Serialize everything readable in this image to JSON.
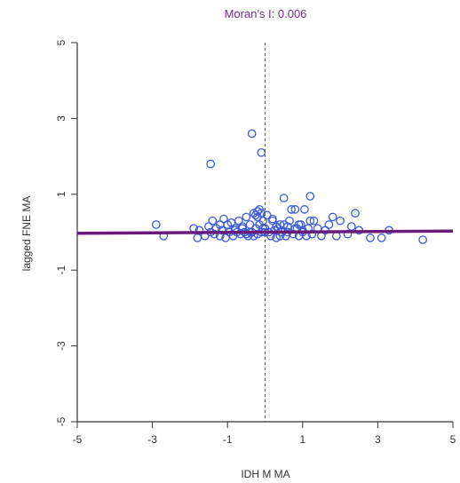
{
  "chart_data": {
    "type": "scatter",
    "title": "Moran's I: 0.006",
    "xlabel": "IDH M MA",
    "ylabel": "lagged FNE MA",
    "xlim": [
      -5,
      5
    ],
    "ylim": [
      -5,
      5
    ],
    "xticks": [
      -5,
      -3,
      -1,
      1,
      3,
      5
    ],
    "yticks": [
      -5,
      -3,
      -1,
      1,
      3,
      5
    ],
    "grid": false,
    "colors": {
      "points": "#3b5bdb",
      "regression": "#6a1a7a",
      "title": "#7a2a8a",
      "vline": "#555555"
    },
    "vline_x": 0,
    "regression": {
      "intercept": 0.0,
      "slope": 0.006
    },
    "series": [
      {
        "x": [
          -2.9,
          -2.7,
          -1.9,
          -1.8,
          -1.75,
          -1.6,
          -1.5,
          -1.45,
          -1.4,
          -1.35,
          -1.3,
          -1.2,
          -1.15,
          -1.1,
          -1.05,
          -1.0,
          -0.95,
          -0.9,
          -0.85,
          -0.8,
          -0.75,
          -0.7,
          -0.65,
          -0.6,
          -0.55,
          -0.5,
          -0.45,
          -0.4,
          -0.35,
          -0.3,
          -0.25,
          -0.2,
          -0.15,
          -0.1,
          -0.05,
          0.0,
          -0.3,
          -0.25,
          -0.2,
          -0.15,
          -0.1,
          -0.05,
          0.05,
          0.1,
          0.15,
          0.2,
          0.25,
          0.3,
          0.35,
          0.4,
          0.45,
          0.5,
          0.55,
          0.6,
          0.65,
          0.7,
          0.75,
          0.8,
          0.85,
          0.9,
          0.95,
          1.0,
          1.05,
          1.1,
          1.15,
          1.2,
          1.25,
          1.3,
          1.4,
          1.5,
          1.6,
          1.7,
          1.8,
          1.9,
          2.0,
          2.2,
          2.3,
          2.4,
          2.5,
          2.8,
          3.1,
          3.3,
          4.2,
          -0.35,
          -0.2,
          -1.45,
          -0.1,
          0.5,
          1.2,
          0.8,
          1.0,
          0.3,
          0.6,
          0.2,
          0.0,
          -0.5,
          -0.8,
          -1.2,
          -0.6,
          -0.4,
          0.4,
          0.9
        ],
        "y": [
          0.2,
          -0.1,
          0.1,
          -0.15,
          0.05,
          -0.1,
          0.15,
          0.0,
          0.3,
          -0.05,
          0.1,
          -0.1,
          0.05,
          0.35,
          -0.15,
          0.2,
          0.0,
          0.25,
          -0.1,
          0.1,
          0.0,
          0.3,
          -0.05,
          0.15,
          0.0,
          0.4,
          -0.1,
          0.2,
          0.0,
          0.5,
          0.45,
          0.55,
          0.6,
          0.5,
          0.3,
          0.0,
          -0.1,
          0.1,
          -0.05,
          0.2,
          0.0,
          0.1,
          0.45,
          0.0,
          -0.1,
          0.3,
          0.05,
          -0.15,
          0.1,
          0.2,
          0.0,
          0.9,
          -0.1,
          0.15,
          0.3,
          0.6,
          -0.05,
          0.6,
          0.1,
          -0.1,
          0.2,
          0.05,
          0.6,
          -0.1,
          0.1,
          0.95,
          -0.05,
          0.3,
          0.1,
          -0.1,
          0.05,
          0.2,
          0.4,
          -0.1,
          0.3,
          -0.05,
          0.15,
          0.5,
          0.05,
          -0.15,
          -0.15,
          0.05,
          -0.2,
          2.6,
          0.4,
          1.8,
          2.1,
          0.2,
          0.3,
          0.1,
          0.0,
          0.15,
          0.0,
          0.35,
          0.1,
          -0.05,
          0.05,
          0.2,
          0.1,
          0.0,
          -0.1,
          0.2
        ]
      }
    ]
  }
}
